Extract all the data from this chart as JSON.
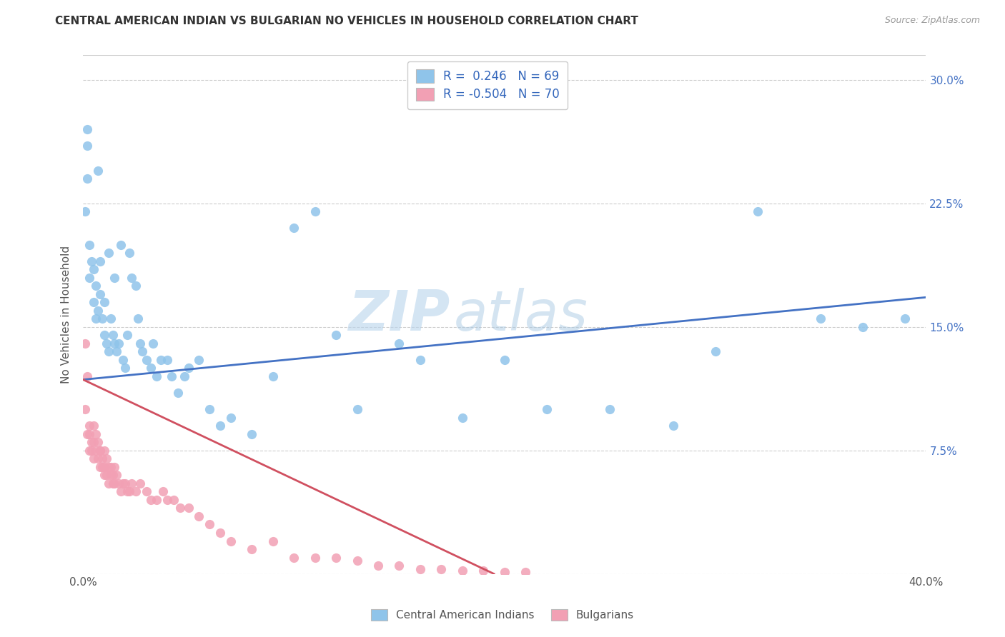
{
  "title": "CENTRAL AMERICAN INDIAN VS BULGARIAN NO VEHICLES IN HOUSEHOLD CORRELATION CHART",
  "source": "Source: ZipAtlas.com",
  "ylabel": "No Vehicles in Household",
  "xlim": [
    0.0,
    0.4
  ],
  "ylim": [
    0.0,
    0.315
  ],
  "color_blue": "#8FC4EA",
  "color_pink": "#F2A0B4",
  "line_blue": "#4472C4",
  "line_pink": "#D05060",
  "watermark_zip": "ZIP",
  "watermark_atlas": "atlas",
  "background": "#FFFFFF",
  "legend_label1": "Central American Indians",
  "legend_label2": "Bulgarians",
  "blue_x": [
    0.001,
    0.002,
    0.002,
    0.003,
    0.003,
    0.004,
    0.005,
    0.005,
    0.006,
    0.006,
    0.007,
    0.008,
    0.008,
    0.009,
    0.01,
    0.01,
    0.011,
    0.012,
    0.012,
    0.013,
    0.014,
    0.015,
    0.015,
    0.016,
    0.017,
    0.018,
    0.019,
    0.02,
    0.021,
    0.022,
    0.023,
    0.025,
    0.026,
    0.027,
    0.028,
    0.03,
    0.032,
    0.033,
    0.035,
    0.037,
    0.04,
    0.042,
    0.045,
    0.048,
    0.05,
    0.055,
    0.06,
    0.065,
    0.07,
    0.08,
    0.09,
    0.1,
    0.11,
    0.12,
    0.13,
    0.15,
    0.16,
    0.18,
    0.2,
    0.22,
    0.25,
    0.28,
    0.3,
    0.32,
    0.35,
    0.37,
    0.39,
    0.002,
    0.007
  ],
  "blue_y": [
    0.22,
    0.24,
    0.26,
    0.2,
    0.18,
    0.19,
    0.185,
    0.165,
    0.175,
    0.155,
    0.16,
    0.17,
    0.19,
    0.155,
    0.145,
    0.165,
    0.14,
    0.135,
    0.195,
    0.155,
    0.145,
    0.14,
    0.18,
    0.135,
    0.14,
    0.2,
    0.13,
    0.125,
    0.145,
    0.195,
    0.18,
    0.175,
    0.155,
    0.14,
    0.135,
    0.13,
    0.125,
    0.14,
    0.12,
    0.13,
    0.13,
    0.12,
    0.11,
    0.12,
    0.125,
    0.13,
    0.1,
    0.09,
    0.095,
    0.085,
    0.12,
    0.21,
    0.22,
    0.145,
    0.1,
    0.14,
    0.13,
    0.095,
    0.13,
    0.1,
    0.1,
    0.09,
    0.135,
    0.22,
    0.155,
    0.15,
    0.155,
    0.27,
    0.245
  ],
  "pink_x": [
    0.001,
    0.001,
    0.002,
    0.002,
    0.003,
    0.003,
    0.003,
    0.004,
    0.004,
    0.005,
    0.005,
    0.005,
    0.006,
    0.006,
    0.007,
    0.007,
    0.008,
    0.008,
    0.008,
    0.009,
    0.009,
    0.01,
    0.01,
    0.01,
    0.011,
    0.011,
    0.012,
    0.012,
    0.013,
    0.013,
    0.014,
    0.014,
    0.015,
    0.015,
    0.016,
    0.017,
    0.018,
    0.019,
    0.02,
    0.021,
    0.022,
    0.023,
    0.025,
    0.027,
    0.03,
    0.032,
    0.035,
    0.038,
    0.04,
    0.043,
    0.046,
    0.05,
    0.055,
    0.06,
    0.065,
    0.07,
    0.08,
    0.09,
    0.1,
    0.11,
    0.12,
    0.13,
    0.14,
    0.15,
    0.16,
    0.17,
    0.18,
    0.19,
    0.2,
    0.21
  ],
  "pink_y": [
    0.1,
    0.14,
    0.085,
    0.12,
    0.075,
    0.09,
    0.085,
    0.08,
    0.075,
    0.09,
    0.08,
    0.07,
    0.085,
    0.075,
    0.08,
    0.07,
    0.075,
    0.065,
    0.075,
    0.07,
    0.065,
    0.075,
    0.065,
    0.06,
    0.07,
    0.06,
    0.065,
    0.055,
    0.06,
    0.065,
    0.06,
    0.055,
    0.065,
    0.055,
    0.06,
    0.055,
    0.05,
    0.055,
    0.055,
    0.05,
    0.05,
    0.055,
    0.05,
    0.055,
    0.05,
    0.045,
    0.045,
    0.05,
    0.045,
    0.045,
    0.04,
    0.04,
    0.035,
    0.03,
    0.025,
    0.02,
    0.015,
    0.02,
    0.01,
    0.01,
    0.01,
    0.008,
    0.005,
    0.005,
    0.003,
    0.003,
    0.002,
    0.002,
    0.001,
    0.001
  ],
  "blue_trend_x0": 0.0,
  "blue_trend_y0": 0.118,
  "blue_trend_x1": 0.4,
  "blue_trend_y1": 0.168,
  "pink_trend_x0": 0.0,
  "pink_trend_y0": 0.118,
  "pink_trend_x1": 0.195,
  "pink_trend_y1": 0.0
}
